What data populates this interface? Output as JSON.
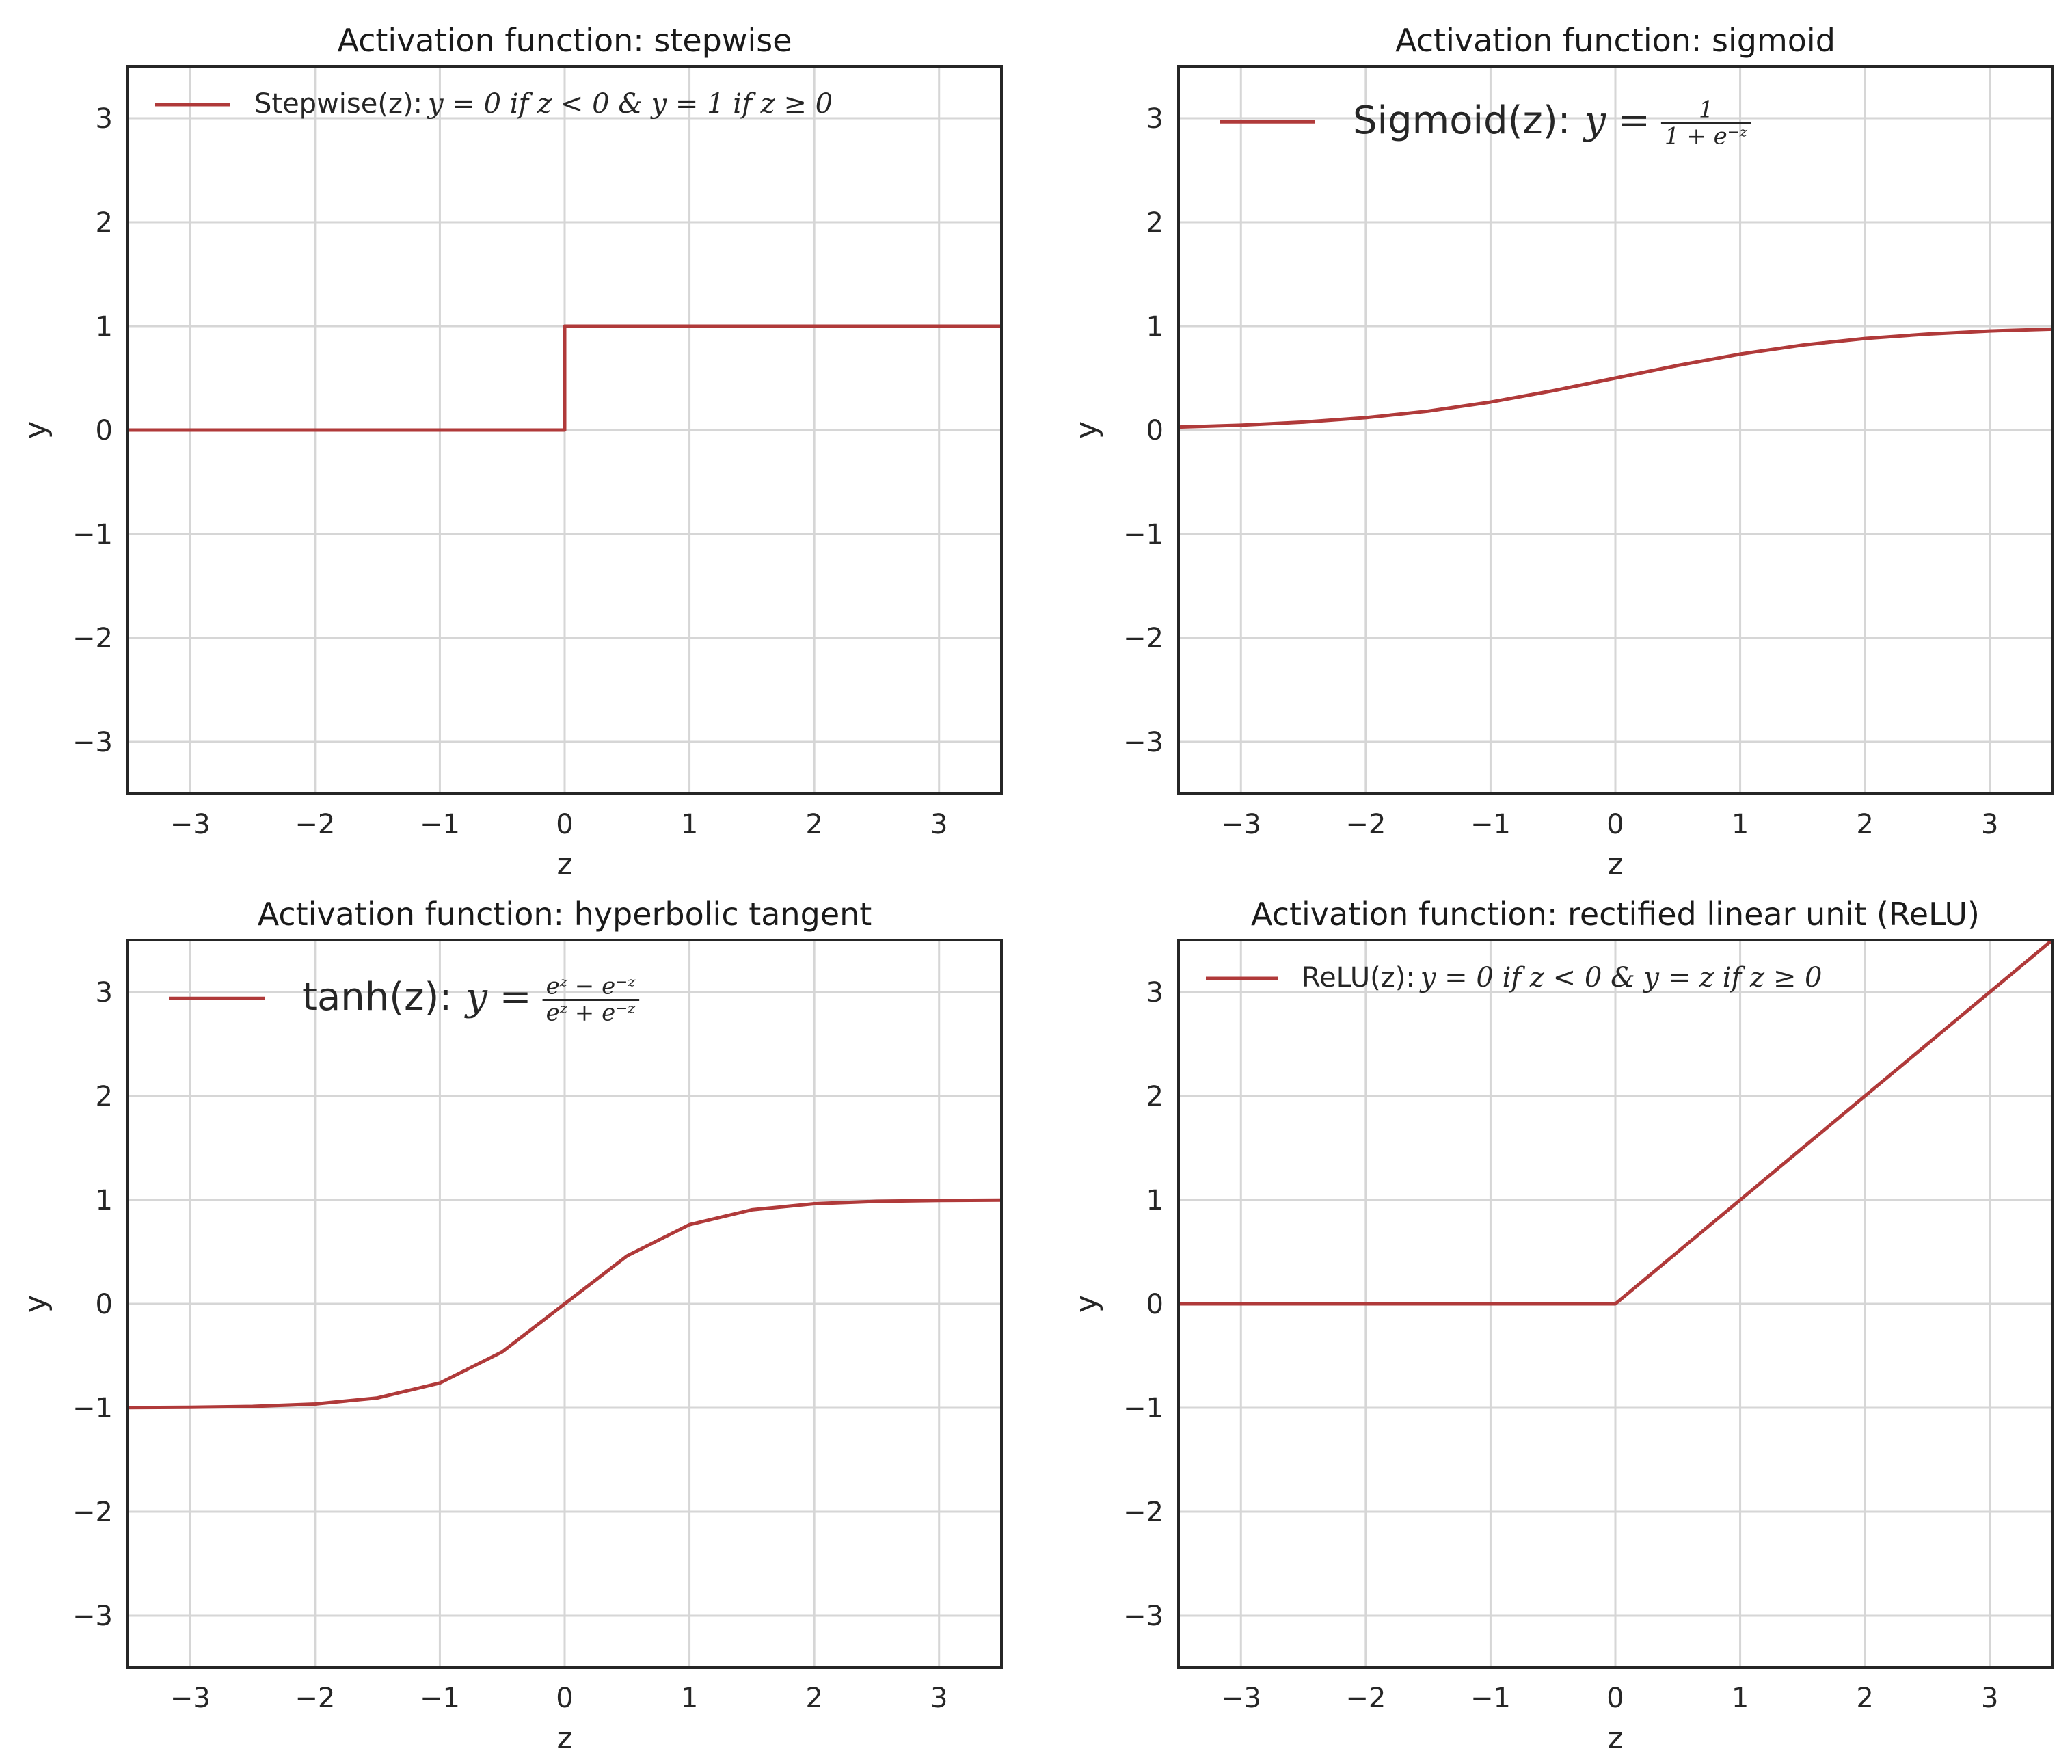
{
  "figure": {
    "line_color": "#b03a3a",
    "grid_color": "#d6d6d6",
    "axes_color": "#262626"
  },
  "chart_data": [
    {
      "type": "line",
      "title": "Activation function: stepwise",
      "xlabel": "z",
      "ylabel": "y",
      "xlim": [
        -3.5,
        3.5
      ],
      "ylim": [
        -3.5,
        3.5
      ],
      "xticks": [
        -3,
        -2,
        -1,
        0,
        1,
        2,
        3
      ],
      "yticks": [
        -3,
        -2,
        -1,
        0,
        1,
        2,
        3
      ],
      "grid": true,
      "legend_position": "top-left",
      "legend": {
        "prefix": "Stepwise(z):",
        "formula": "y = 0 if z < 0 & y = 1 if z ≥ 0"
      },
      "series": [
        {
          "x": [
            -3.5,
            0,
            0,
            3.5
          ],
          "y": [
            0,
            0,
            1,
            1
          ]
        }
      ]
    },
    {
      "type": "line",
      "title": "Activation function: sigmoid",
      "xlabel": "z",
      "ylabel": "y",
      "xlim": [
        -3.5,
        3.5
      ],
      "ylim": [
        -3.5,
        3.5
      ],
      "xticks": [
        -3,
        -2,
        -1,
        0,
        1,
        2,
        3
      ],
      "yticks": [
        -3,
        -2,
        -1,
        0,
        1,
        2,
        3
      ],
      "grid": true,
      "legend_position": "top-left",
      "legend": {
        "prefix": "Sigmoid(z):",
        "lhs": "y =",
        "numerator": "1",
        "denominator": "1 + e⁻ᶻ"
      },
      "series": [
        {
          "x": [
            -3.5,
            -3,
            -2.5,
            -2,
            -1.5,
            -1,
            -0.5,
            0,
            0.5,
            1,
            1.5,
            2,
            2.5,
            3,
            3.5
          ],
          "y": [
            0.029,
            0.047,
            0.076,
            0.119,
            0.182,
            0.269,
            0.378,
            0.5,
            0.622,
            0.731,
            0.818,
            0.881,
            0.924,
            0.953,
            0.971
          ]
        }
      ]
    },
    {
      "type": "line",
      "title": "Activation function: hyperbolic tangent",
      "xlabel": "z",
      "ylabel": "y",
      "xlim": [
        -3.5,
        3.5
      ],
      "ylim": [
        -3.5,
        3.5
      ],
      "xticks": [
        -3,
        -2,
        -1,
        0,
        1,
        2,
        3
      ],
      "yticks": [
        -3,
        -2,
        -1,
        0,
        1,
        2,
        3
      ],
      "grid": true,
      "legend_position": "top-left",
      "legend": {
        "prefix": "tanh(z):",
        "lhs": "y =",
        "numerator": "eᶻ − e⁻ᶻ",
        "denominator": "eᶻ + e⁻ᶻ"
      },
      "series": [
        {
          "x": [
            -3.5,
            -3,
            -2.5,
            -2,
            -1.5,
            -1,
            -0.5,
            0,
            0.5,
            1,
            1.5,
            2,
            2.5,
            3,
            3.5
          ],
          "y": [
            -0.998,
            -0.995,
            -0.987,
            -0.964,
            -0.905,
            -0.762,
            -0.462,
            0,
            0.462,
            0.762,
            0.905,
            0.964,
            0.987,
            0.995,
            0.998
          ]
        }
      ]
    },
    {
      "type": "line",
      "title": "Activation function: rectified linear unit (ReLU)",
      "xlabel": "z",
      "ylabel": "y",
      "xlim": [
        -3.5,
        3.5
      ],
      "ylim": [
        -3.5,
        3.5
      ],
      "xticks": [
        -3,
        -2,
        -1,
        0,
        1,
        2,
        3
      ],
      "yticks": [
        -3,
        -2,
        -1,
        0,
        1,
        2,
        3
      ],
      "grid": true,
      "legend_position": "top-left",
      "legend": {
        "prefix": "ReLU(z):",
        "formula": "y = 0 if z < 0 & y = z if z ≥ 0"
      },
      "series": [
        {
          "x": [
            -3.5,
            0,
            3.5
          ],
          "y": [
            0,
            0,
            3.5
          ]
        }
      ]
    }
  ]
}
